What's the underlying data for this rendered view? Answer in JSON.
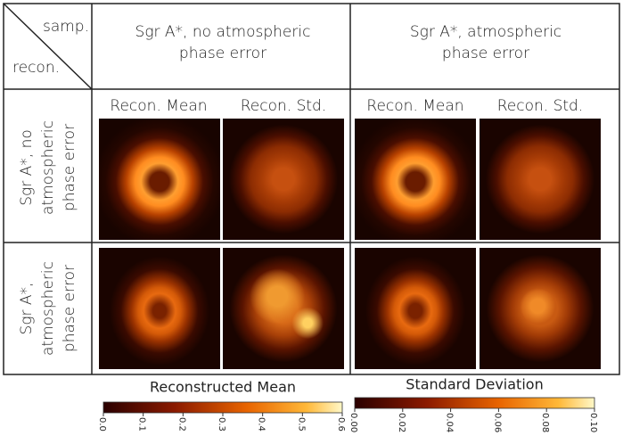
{
  "header": {
    "corner_top": "samp.",
    "corner_bottom": "recon."
  },
  "columns": [
    "Sgr A*, no atmospheric phase error",
    "Sgr A*, atmospheric phase error"
  ],
  "subcolumns": [
    "Recon. Mean",
    "Recon. Std.",
    "Recon. Mean",
    "Recon. Std."
  ],
  "rows": [
    "Sgr A*, no atmospheric phase error",
    "Sgr A*, atmospheric phase error"
  ],
  "colorbars": [
    {
      "title": "Reconstructed Mean",
      "lim": [
        0,
        0.6
      ],
      "ticks": [
        {
          "value": 0,
          "label": "0.0"
        },
        0.1,
        0.2,
        0.3,
        0.4,
        0.5,
        0.6
      ]
    },
    {
      "title": "Standard Deviation",
      "lim": [
        0,
        0.1
      ],
      "ticks": [
        {
          "value": 0,
          "label": "0.00"
        },
        0.02,
        0.04,
        0.06,
        0.08,
        {
          "value": 0.1,
          "label": "0.10"
        }
      ]
    }
  ]
}
